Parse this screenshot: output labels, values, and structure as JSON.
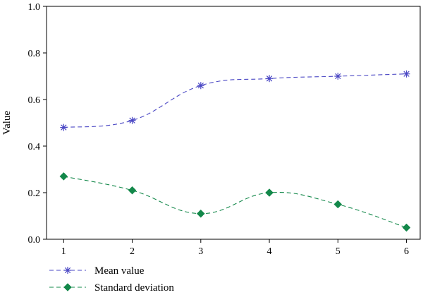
{
  "chart_data": {
    "type": "line",
    "title": "",
    "xlabel": "",
    "ylabel": "Value",
    "x": [
      1,
      2,
      3,
      4,
      5,
      6
    ],
    "xlim": [
      0.75,
      6.2
    ],
    "ylim": [
      0.0,
      1.0
    ],
    "yticks": [
      0.0,
      0.2,
      0.4,
      0.6,
      0.8,
      1.0
    ],
    "ytick_labels": [
      "0.0",
      "0.2",
      "0.4",
      "0.6",
      "0.8",
      "1.0"
    ],
    "xticks": [
      1,
      2,
      3,
      4,
      5,
      6
    ],
    "xtick_labels": [
      "1",
      "2",
      "3",
      "4",
      "5",
      "6"
    ],
    "grid": false,
    "legend_position": "bottom-left, below plot",
    "series": [
      {
        "name": "Mean value",
        "values": [
          0.48,
          0.51,
          0.66,
          0.69,
          0.7,
          0.71
        ],
        "color": "#4a47c4",
        "marker": "asterisk",
        "line_style": "dashed"
      },
      {
        "name": "Standard deviation",
        "values": [
          0.27,
          0.21,
          0.11,
          0.2,
          0.15,
          0.05
        ],
        "color": "#13884a",
        "marker": "diamond",
        "line_style": "dashed"
      }
    ]
  }
}
